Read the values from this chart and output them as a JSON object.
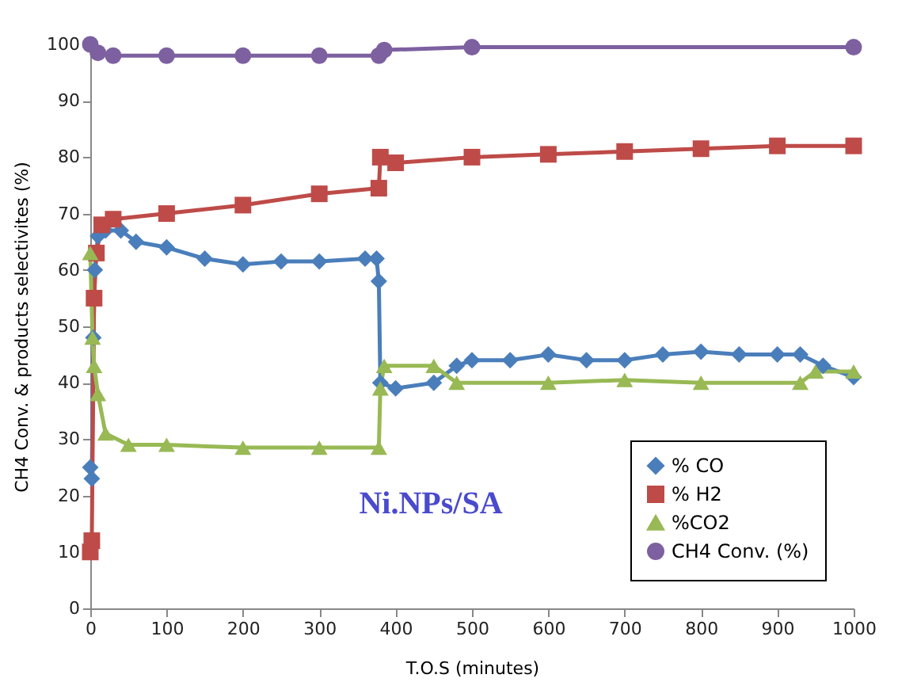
{
  "chart_data": {
    "type": "line",
    "xlabel": "T.O.S (minutes)",
    "ylabel": "CH4 Conv. & products selectivites (%)",
    "annotations": [
      "Ni.NPs/SA"
    ],
    "xlim": [
      0,
      1000
    ],
    "xticks": [
      0,
      100,
      200,
      300,
      400,
      500,
      600,
      700,
      800,
      900,
      1000
    ],
    "ylim": [
      0,
      100
    ],
    "yticks": [
      0,
      10,
      20,
      30,
      40,
      50,
      60,
      70,
      80,
      90,
      100
    ],
    "grid": false,
    "legend": "bottom right",
    "line_style": "solid",
    "series": [
      {
        "name": "% CO",
        "color": "#4a7ebb",
        "marker": "diamond",
        "x": [
          0,
          2,
          4,
          6,
          10,
          20,
          40,
          60,
          100,
          150,
          200,
          250,
          300,
          360,
          375,
          378,
          380,
          400,
          450,
          480,
          500,
          550,
          600,
          650,
          700,
          750,
          800,
          850,
          900,
          930,
          960,
          1000
        ],
        "values": [
          25,
          23,
          48,
          60,
          66,
          67,
          67,
          65,
          64,
          62,
          61,
          61.5,
          61.5,
          62,
          62,
          58,
          40,
          39,
          40,
          43,
          44,
          44,
          45,
          44,
          44,
          45,
          45.5,
          45,
          45,
          45,
          43,
          41
        ]
      },
      {
        "name": "% H2",
        "color": "#be4b48",
        "marker": "square",
        "x": [
          0,
          2,
          5,
          8,
          15,
          30,
          100,
          200,
          300,
          378,
          380,
          400,
          500,
          600,
          700,
          800,
          900,
          1000
        ],
        "values": [
          10,
          12,
          55,
          63,
          68,
          69,
          70,
          71.5,
          73.5,
          74.5,
          80,
          79,
          80,
          80.5,
          81,
          81.5,
          82,
          82
        ]
      },
      {
        "name": "%CO2",
        "color": "#98b954",
        "marker": "triangle",
        "x": [
          0,
          3,
          5,
          10,
          20,
          50,
          100,
          200,
          300,
          378,
          380,
          385,
          450,
          480,
          600,
          700,
          800,
          930,
          950,
          1000
        ],
        "values": [
          63,
          48,
          43,
          38,
          31,
          29,
          29,
          28.5,
          28.5,
          28.5,
          39,
          43,
          43,
          40,
          40,
          40.5,
          40,
          40,
          42,
          42
        ]
      },
      {
        "name": "CH4 Conv. (%)",
        "color": "#7d60a0",
        "marker": "circle",
        "x": [
          0,
          10,
          30,
          100,
          200,
          300,
          378,
          385,
          500,
          1000
        ],
        "values": [
          100,
          98.5,
          98,
          98,
          98,
          98,
          98,
          99,
          99.5,
          99.5
        ]
      }
    ]
  }
}
